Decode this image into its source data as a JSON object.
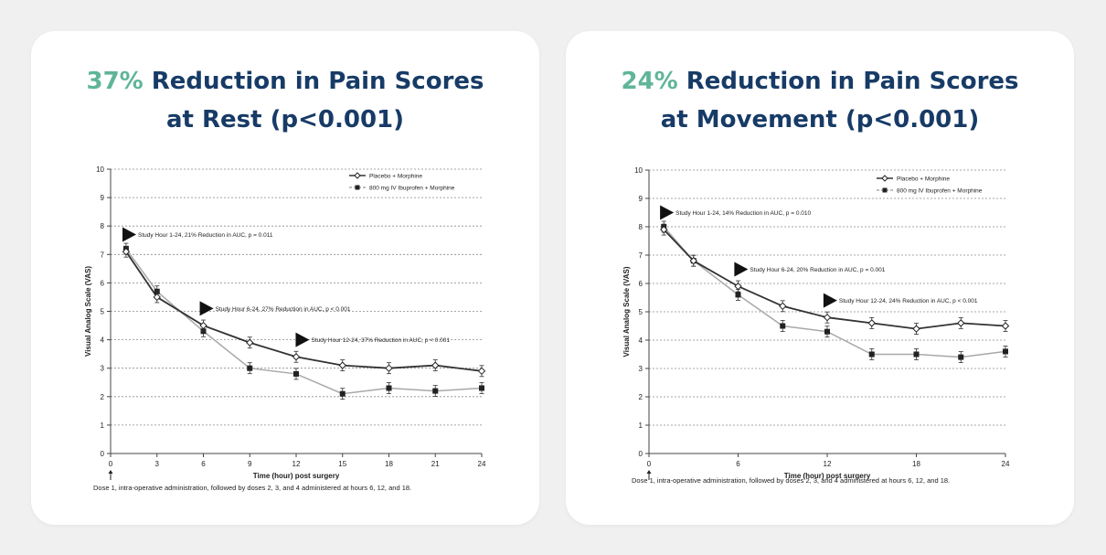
{
  "colors": {
    "accent": "#5fb597",
    "title": "#173b66",
    "placebo": "#333333",
    "ibuprofen": "#a8a8a8"
  },
  "cards": [
    {
      "title_pct": "37%",
      "title_line1": "Reduction in Pain Scores",
      "title_line2": "at Rest (p<0.001)"
    },
    {
      "title_pct": "24%",
      "title_line1": "Reduction in Pain Scores",
      "title_line2": "at Movement (p<0.001)"
    }
  ],
  "chart_data": [
    {
      "type": "line",
      "ylabel": "Visual Analog Scale (VAS)",
      "xlabel": "Time (hour) post surgery",
      "xlim": [
        0,
        24
      ],
      "ylim": [
        0,
        10
      ],
      "xticks": [
        0,
        3,
        6,
        9,
        12,
        15,
        18,
        21,
        24
      ],
      "yticks": [
        0,
        1,
        2,
        3,
        4,
        5,
        6,
        7,
        8,
        9,
        10
      ],
      "grid": "horizontal dashed",
      "legend_position": "top-right",
      "footnote": "Dose 1, intra-operative administration, followed by doses 2, 3, and 4 administered at hours 6, 12, and 18.",
      "series": [
        {
          "name": "Placebo + Morphine",
          "marker": "open-diamond",
          "x": [
            1,
            3,
            6,
            9,
            12,
            15,
            18,
            21,
            24
          ],
          "y": [
            7.1,
            5.5,
            4.5,
            3.9,
            3.4,
            3.1,
            3.0,
            3.1,
            2.9
          ]
        },
        {
          "name": "800 mg IV Ibuprofen + Morphine",
          "marker": "filled-square",
          "x": [
            1,
            3,
            6,
            9,
            12,
            15,
            18,
            21,
            24
          ],
          "y": [
            7.2,
            5.7,
            4.3,
            3.0,
            2.8,
            2.1,
            2.3,
            2.2,
            2.3
          ]
        }
      ],
      "annotations": [
        {
          "text": "Study Hour 1-24, 21% Reduction in AUC, p = 0.011",
          "x": 1.3,
          "y": 7.7
        },
        {
          "text": "Study Hour 6-24, 27% Reduction in AUC, p < 0.001",
          "x": 6.3,
          "y": 5.1
        },
        {
          "text": "Study Hour 12-24, 37% Reduction in AUC, p < 0.001",
          "x": 12.5,
          "y": 4.0
        }
      ]
    },
    {
      "type": "line",
      "ylabel": "Visual Analog Scale (VAS)",
      "xlabel": "Time (hour) post surgery",
      "xlim": [
        0,
        24
      ],
      "ylim": [
        0,
        10
      ],
      "xticks": [
        0,
        6,
        12,
        18,
        24
      ],
      "yticks": [
        0,
        1,
        2,
        3,
        4,
        5,
        6,
        7,
        8,
        9,
        10
      ],
      "grid": "horizontal dashed",
      "legend_position": "top-right",
      "footnote": "Dose 1, intra-operative administration, followed by doses 2, 3, and 4 administered at hours 6, 12, and 18.",
      "series": [
        {
          "name": "Placebo + Morphine",
          "marker": "open-diamond",
          "x": [
            1,
            3,
            6,
            9,
            12,
            15,
            18,
            21,
            24
          ],
          "y": [
            7.9,
            6.8,
            5.9,
            5.2,
            4.8,
            4.6,
            4.4,
            4.6,
            4.5
          ]
        },
        {
          "name": "800 mg IV Ibuprofen + Morphine",
          "marker": "filled-square",
          "x": [
            1,
            3,
            6,
            9,
            12,
            15,
            18,
            21,
            24
          ],
          "y": [
            8.0,
            6.8,
            5.6,
            4.5,
            4.3,
            3.5,
            3.5,
            3.4,
            3.6
          ]
        }
      ],
      "annotations": [
        {
          "text": "Study Hour 1-24, 14% Reduction in AUC, p = 0.010",
          "x": 1.3,
          "y": 8.5
        },
        {
          "text": "Study Hour 6-24, 20% Reduction in AUC, p = 0.001",
          "x": 6.3,
          "y": 6.5
        },
        {
          "text": "Study Hour 12-24, 24% Reduction in AUC, p < 0.001",
          "x": 12.3,
          "y": 5.4
        }
      ]
    }
  ]
}
